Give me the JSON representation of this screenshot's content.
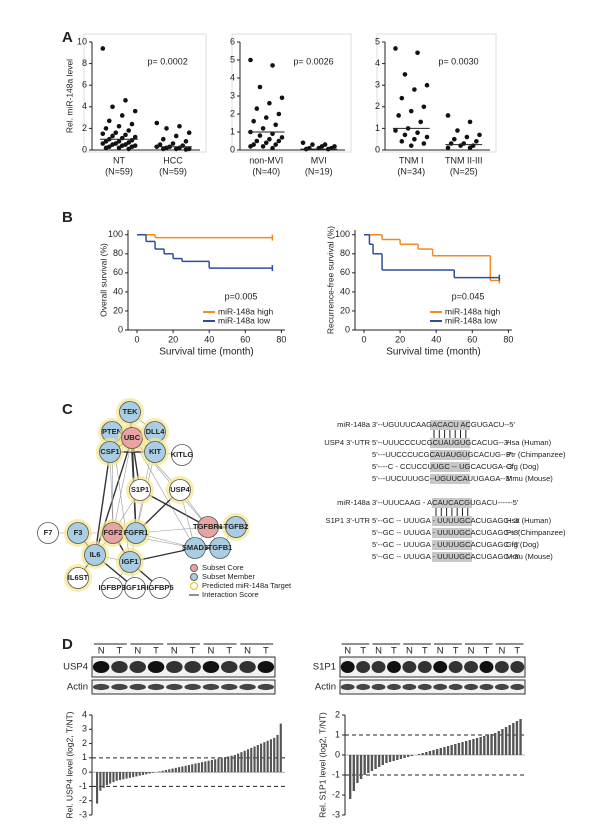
{
  "panels": [
    "A",
    "B",
    "C",
    "D"
  ],
  "chart_data": [
    {
      "type": "dot",
      "ylabel": "Rel. miR-148a level",
      "categories": [
        "NT",
        "HCC"
      ],
      "group_sizes": [
        "(N=59)",
        "(N=59)"
      ],
      "groups": [
        [
          9.4,
          4.6,
          4.0,
          3.6,
          3.2,
          2.7,
          2.4,
          2.2,
          2.0,
          1.8,
          1.6,
          1.5,
          1.4,
          1.3,
          1.2,
          1.1,
          1.0,
          0.9,
          0.8,
          0.8,
          0.7,
          0.6,
          0.6,
          0.5,
          0.5,
          0.4,
          0.4,
          0.3,
          0.3,
          0.2,
          0.2,
          0.1
        ],
        [
          2.5,
          2.2,
          2.0,
          1.6,
          1.3,
          1.0,
          0.8,
          0.6,
          0.5,
          0.4,
          0.3,
          0.3,
          0.2,
          0.2,
          0.1,
          0.1,
          0.1,
          0.05
        ]
      ],
      "center_lines": [
        1.0,
        0.3
      ],
      "annotation": "p= 0.0002",
      "ylim": [
        0,
        10
      ],
      "yticks": [
        0,
        2,
        4,
        6,
        8,
        10
      ]
    },
    {
      "type": "dot",
      "categories": [
        "non-MVI",
        "MVI"
      ],
      "group_sizes": [
        "(N=40)",
        "(N=19)"
      ],
      "groups": [
        [
          5.0,
          4.7,
          3.5,
          2.9,
          2.6,
          2.3,
          2.0,
          1.8,
          1.6,
          1.4,
          1.2,
          1.0,
          0.9,
          0.8,
          0.7,
          0.6,
          0.5,
          0.5,
          0.4,
          0.3,
          0.3,
          0.2,
          0.2,
          0.1
        ],
        [
          0.4,
          0.3,
          0.3,
          0.2,
          0.2,
          0.1,
          0.1,
          0.1,
          0.05,
          0.05
        ]
      ],
      "center_lines": [
        1.0,
        0.05
      ],
      "annotation": "p= 0.0026",
      "ylim": [
        0,
        6
      ],
      "yticks": [
        0,
        1,
        2,
        3,
        4,
        5,
        6
      ]
    },
    {
      "type": "dot",
      "categories": [
        "TNM I",
        "TNM II-III"
      ],
      "group_sizes": [
        "(N=34)",
        "(N=25)"
      ],
      "groups": [
        [
          4.7,
          4.5,
          3.5,
          3.0,
          2.8,
          2.4,
          2.0,
          1.8,
          1.6,
          1.3,
          1.0,
          0.9,
          0.8,
          0.7,
          0.6,
          0.5,
          0.4,
          0.3,
          0.2
        ],
        [
          1.6,
          1.3,
          0.9,
          0.7,
          0.6,
          0.5,
          0.4,
          0.3,
          0.3,
          0.2,
          0.2,
          0.1,
          0.1
        ]
      ],
      "center_lines": [
        1.0,
        0.25
      ],
      "annotation": "p= 0.0030",
      "ylim": [
        0,
        5
      ],
      "yticks": [
        0,
        1,
        2,
        3,
        4,
        5
      ]
    },
    {
      "type": "survival",
      "ylabel": "Overall survival (%)",
      "xlabel": "Survival time (month)",
      "annotation": "p=0.005",
      "xlim": [
        -5,
        82
      ],
      "xticks": [
        0,
        20,
        40,
        60,
        80
      ],
      "ylim": [
        0,
        105
      ],
      "yticks": [
        0,
        20,
        40,
        60,
        80,
        100
      ],
      "legend": "lower right",
      "series": [
        {
          "name": "miR-148a high",
          "color": "#f08a24",
          "x": [
            0,
            10,
            75
          ],
          "values": [
            100,
            97,
            97
          ]
        },
        {
          "name": "miR-148a low",
          "color": "#2e4d9e",
          "x": [
            0,
            5,
            10,
            15,
            20,
            25,
            40,
            75
          ],
          "values": [
            100,
            93,
            85,
            80,
            75,
            72,
            65,
            65
          ]
        }
      ]
    },
    {
      "type": "survival",
      "ylabel": "Recurrence-free survival (%)",
      "xlabel": "Survival time (month)",
      "annotation": "p=0.045",
      "xlim": [
        -5,
        82
      ],
      "xticks": [
        0,
        20,
        40,
        60,
        80
      ],
      "ylim": [
        0,
        105
      ],
      "yticks": [
        0,
        20,
        40,
        60,
        80,
        100
      ],
      "legend": "lower right",
      "series": [
        {
          "name": "miR-148a high",
          "color": "#f08a24",
          "x": [
            0,
            10,
            20,
            30,
            38,
            70,
            75
          ],
          "values": [
            100,
            95,
            90,
            85,
            78,
            52,
            52
          ]
        },
        {
          "name": "miR-148a low",
          "color": "#2e4d9e",
          "x": [
            0,
            3,
            5,
            10,
            50,
            75
          ],
          "values": [
            100,
            90,
            80,
            63,
            55,
            55
          ]
        }
      ]
    },
    {
      "type": "bar",
      "ylabel": "Rel. USP4 level (log2, T/NT)",
      "ylim": [
        -3,
        4
      ],
      "yticks": [
        -3,
        -2,
        -1,
        0,
        1,
        2,
        3,
        4
      ],
      "reference_lines": [
        1,
        -1
      ],
      "color": "#555555",
      "values": [
        -2.2,
        -1.3,
        -1.1,
        -0.9,
        -0.8,
        -0.7,
        -0.6,
        -0.55,
        -0.5,
        -0.45,
        -0.4,
        -0.35,
        -0.3,
        -0.25,
        -0.2,
        -0.15,
        -0.1,
        -0.05,
        0,
        0.05,
        0.1,
        0.15,
        0.2,
        0.25,
        0.3,
        0.35,
        0.4,
        0.45,
        0.5,
        0.55,
        0.6,
        0.65,
        0.7,
        0.75,
        0.8,
        0.85,
        0.9,
        0.95,
        1.0,
        1.05,
        1.1,
        1.15,
        1.2,
        1.3,
        1.4,
        1.5,
        1.6,
        1.7,
        1.8,
        1.9,
        2.0,
        2.1,
        2.2,
        2.3,
        2.4,
        2.6,
        3.4
      ]
    },
    {
      "type": "bar",
      "ylabel": "Rel. S1P1 level (log2, T/NT)",
      "ylim": [
        -3,
        2
      ],
      "yticks": [
        -3,
        -2,
        -1,
        0,
        1,
        2
      ],
      "reference_lines": [
        1,
        -1
      ],
      "color": "#555555",
      "values": [
        -2.2,
        -1.8,
        -1.4,
        -1.2,
        -1.0,
        -0.9,
        -0.8,
        -0.7,
        -0.6,
        -0.5,
        -0.4,
        -0.35,
        -0.3,
        -0.25,
        -0.2,
        -0.15,
        -0.1,
        -0.05,
        0,
        0.05,
        0.1,
        0.15,
        0.2,
        0.25,
        0.3,
        0.35,
        0.4,
        0.45,
        0.5,
        0.55,
        0.6,
        0.65,
        0.7,
        0.75,
        0.8,
        0.85,
        0.9,
        0.95,
        1.0,
        1.05,
        1.1,
        1.2,
        1.3,
        1.4,
        1.5,
        1.6,
        1.7,
        1.8
      ]
    }
  ],
  "network": {
    "nodes": [
      {
        "label": "TEK",
        "kind": "member",
        "target": true
      },
      {
        "label": "PTEN",
        "kind": "member",
        "target": true
      },
      {
        "label": "UBC",
        "kind": "core",
        "target": true
      },
      {
        "label": "DLL4",
        "kind": "member",
        "target": true
      },
      {
        "label": "CSF1",
        "kind": "member",
        "target": true
      },
      {
        "label": "KIT",
        "kind": "member",
        "target": true
      },
      {
        "label": "KITLG",
        "kind": "other",
        "target": false
      },
      {
        "label": "S1P1",
        "kind": "other",
        "target": true
      },
      {
        "label": "USP4",
        "kind": "other",
        "target": true
      },
      {
        "label": "F7",
        "kind": "other",
        "target": false
      },
      {
        "label": "F3",
        "kind": "member",
        "target": true
      },
      {
        "label": "FGF2",
        "kind": "core",
        "target": true
      },
      {
        "label": "FGFR1",
        "kind": "member",
        "target": true
      },
      {
        "label": "TGFBR1",
        "kind": "core",
        "target": false
      },
      {
        "label": "TGFB2",
        "kind": "member",
        "target": true
      },
      {
        "label": "IL6",
        "kind": "member",
        "target": true
      },
      {
        "label": "IGF1",
        "kind": "member",
        "target": true
      },
      {
        "label": "SMAD3",
        "kind": "member",
        "target": false
      },
      {
        "label": "TGFB1",
        "kind": "member",
        "target": false
      },
      {
        "label": "IL6ST",
        "kind": "other",
        "target": true
      },
      {
        "label": "IGFBP3",
        "kind": "other",
        "target": false
      },
      {
        "label": "IGF1R",
        "kind": "other",
        "target": false
      },
      {
        "label": "IGFBP5",
        "kind": "other",
        "target": false
      }
    ],
    "legend": [
      "Subset Core",
      "Subset Member",
      "Predicted miR-148a Target",
      "Interaction Score"
    ]
  },
  "alignments": [
    {
      "mirna_label": "miR-148a",
      "mirna_seq": "3'--UGUUUCAAGACACU ACGUGACU--5'",
      "rows": [
        {
          "label": "USP4 3'-UTR",
          "seq": "5'--UUUCCCUCGCUAUGUGCACUG--3'",
          "species": "Hsa (Human)"
        },
        {
          "seq": "5'---UUCCCUCGCAUAUGUGCACUG--3'",
          "species": "Ptr (Chimpanzee)"
        },
        {
          "seq": "5'----C - CCUCCUUGC -- UGCACUGA--3'",
          "species": "Cfg (Dog)"
        },
        {
          "seq": "5'---UUCUUUGC--UGUUCAUUGAGA--3'",
          "species": "Mmu (Mouse)"
        }
      ]
    },
    {
      "mirna_label": "miR-148a",
      "mirna_seq": "3'--UUUCAAG - ACAUCACGUGACU------5'",
      "rows": [
        {
          "label": "S1P1 3'-UTR",
          "seq": "5'--GC -- UUUGA - UUUUGCACUGAGC--3'",
          "species": "Hsa (Human)"
        },
        {
          "seq": "5'--GC -- UUUGA - UUUUGCACUGAGC--3'",
          "species": "Ptr (Chimpanzee)"
        },
        {
          "seq": "5'--GC -- UUUGA - UUUUGCACUGAGC--3'",
          "species": "Cfg (Dog)"
        },
        {
          "seq": "5'--GC -- UUUGA - UUUUGCACUGAGC--3'",
          "species": "Mmu (Mouse)"
        }
      ]
    }
  ],
  "blots": [
    {
      "lanes": [
        "N",
        "T",
        "N",
        "T",
        "N",
        "T",
        "N",
        "T",
        "N",
        "T"
      ],
      "rows": [
        "USP4",
        "Actin"
      ]
    },
    {
      "lanes": [
        "N",
        "T",
        "N",
        "T",
        "N",
        "T",
        "N",
        "T",
        "N",
        "T",
        "N",
        "T"
      ],
      "rows": [
        "S1P1",
        "Actin"
      ]
    }
  ]
}
